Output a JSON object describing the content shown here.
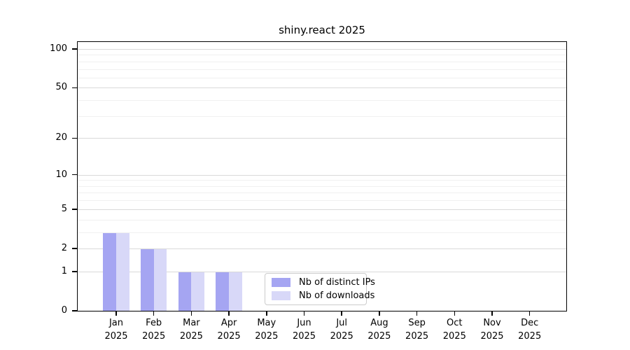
{
  "chart_data": {
    "type": "bar",
    "title": "shiny.react 2025",
    "y_scale": "log1p",
    "ylim": [
      0,
      115
    ],
    "grid": true,
    "legend_position": "lower center inside plot",
    "y_ticks": [
      0,
      1,
      2,
      5,
      10,
      20,
      50,
      100
    ],
    "minor_gridlines": [
      3,
      4,
      6,
      7,
      8,
      9,
      30,
      40,
      60,
      70,
      80,
      90
    ],
    "categories": [
      {
        "month": "Jan",
        "year": "2025"
      },
      {
        "month": "Feb",
        "year": "2025"
      },
      {
        "month": "Mar",
        "year": "2025"
      },
      {
        "month": "Apr",
        "year": "2025"
      },
      {
        "month": "May",
        "year": "2025"
      },
      {
        "month": "Jun",
        "year": "2025"
      },
      {
        "month": "Jul",
        "year": "2025"
      },
      {
        "month": "Aug",
        "year": "2025"
      },
      {
        "month": "Sep",
        "year": "2025"
      },
      {
        "month": "Oct",
        "year": "2025"
      },
      {
        "month": "Nov",
        "year": "2025"
      },
      {
        "month": "Dec",
        "year": "2025"
      }
    ],
    "series": [
      {
        "name": "Nb of distinct IPs",
        "color": "#a5a5f2",
        "values": [
          3,
          2,
          1,
          1,
          0,
          0,
          0,
          0,
          0,
          0,
          0,
          0
        ]
      },
      {
        "name": "Nb of downloads",
        "color": "#d8d8f8",
        "values": [
          3,
          2,
          1,
          1,
          0,
          0,
          0,
          0,
          0,
          0,
          0,
          0
        ]
      }
    ],
    "axis_color": "#000000",
    "major_grid_color": "#d9d9d9",
    "minor_grid_color": "#f0f0f0"
  }
}
